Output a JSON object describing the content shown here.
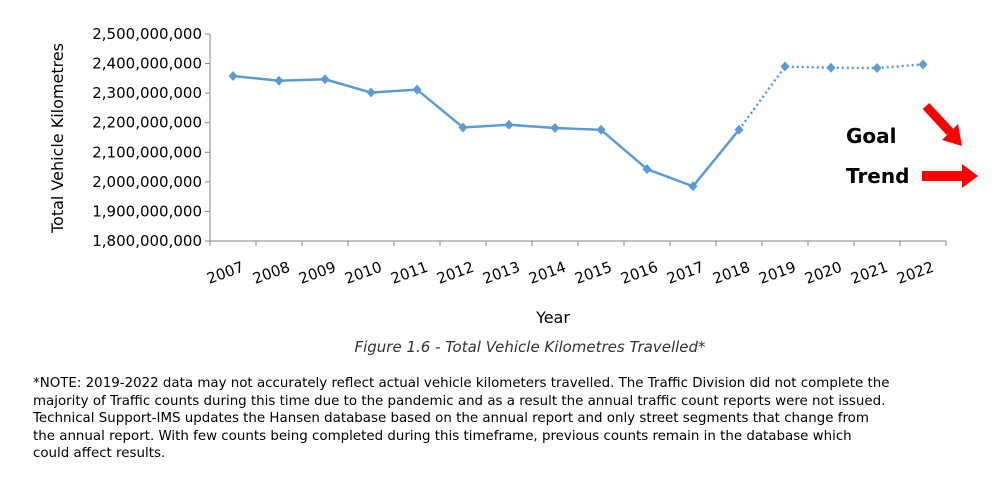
{
  "chart_data": {
    "type": "line",
    "title": "",
    "xlabel": "Year",
    "ylabel": "Total Vehicle Kilometres",
    "ylim": [
      1800000000,
      2500000000
    ],
    "yticks": [
      "1,800,000,000",
      "1,900,000,000",
      "2,000,000,000",
      "2,100,000,000",
      "2,200,000,000",
      "2,300,000,000",
      "2,400,000,000",
      "2,500,000,000"
    ],
    "categories": [
      "2007",
      "2008",
      "2009",
      "2010",
      "2011",
      "2012",
      "2013",
      "2014",
      "2015",
      "2016",
      "2017",
      "2018",
      "2019",
      "2020",
      "2021",
      "2022"
    ],
    "series": [
      {
        "name": "Total Vehicle Kilometres Travelled",
        "color": "#5b9bd5",
        "values": [
          2358000000,
          2342000000,
          2347000000,
          2302000000,
          2312000000,
          2184000000,
          2193000000,
          2182000000,
          2176000000,
          2043000000,
          1985000000,
          2176000000,
          2390000000,
          2386000000,
          2385000000,
          2397000000
        ],
        "dotted_from": "2018"
      }
    ],
    "grid": false,
    "legend": {
      "goal_label": "Goal",
      "goal_direction": "down",
      "trend_label": "Trend",
      "trend_direction": "flat",
      "arrow_color": "#ff0000"
    }
  },
  "caption": "Figure 1.6 - Total Vehicle Kilometres Travelled*",
  "note_lines": [
    "*NOTE: 2019-2022 data may not accurately reflect actual vehicle kilometers travelled.  The Traffic Division did not complete the",
    "majority of Traffic counts during this time due to the pandemic and as a result the annual traffic count reports were not issued.",
    "Technical Support-IMS updates the Hansen database based on the annual report and only street segments that change from",
    "the annual report. With few counts being completed during this timeframe, previous counts remain in the database which",
    "could affect results."
  ]
}
